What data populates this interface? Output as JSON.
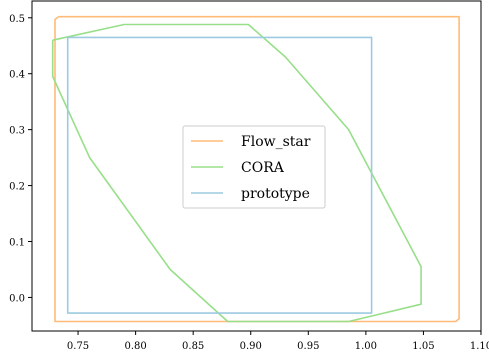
{
  "chart_data": {
    "type": "line",
    "xlim": [
      0.71,
      1.1
    ],
    "ylim": [
      -0.06,
      0.53
    ],
    "x_ticks": [
      0.75,
      0.8,
      0.85,
      0.9,
      0.95,
      1.0,
      1.05,
      1.1
    ],
    "y_ticks": [
      0.0,
      0.1,
      0.2,
      0.3,
      0.4,
      0.5
    ],
    "x_tick_labels": [
      "0.75",
      "0.80",
      "0.85",
      "0.90",
      "0.95",
      "1.00",
      "1.05",
      "1.10"
    ],
    "y_tick_labels": [
      "0.0",
      "0.1",
      "0.2",
      "0.3",
      "0.4",
      "0.5"
    ],
    "grid": false,
    "legend_position": "center",
    "series": [
      {
        "name": "Flow_star",
        "color": "#ffbb78",
        "points": [
          [
            0.733,
            0.502
          ],
          [
            1.081,
            0.502
          ],
          [
            1.081,
            -0.038
          ],
          [
            1.078,
            -0.043
          ],
          [
            0.73,
            -0.043
          ],
          [
            0.73,
            0.497
          ],
          [
            0.733,
            0.502
          ]
        ]
      },
      {
        "name": "CORA",
        "color": "#98df8a",
        "points": [
          [
            0.728,
            0.46
          ],
          [
            0.79,
            0.488
          ],
          [
            0.898,
            0.488
          ],
          [
            0.93,
            0.43
          ],
          [
            0.985,
            0.3
          ],
          [
            1.048,
            0.055
          ],
          [
            1.048,
            -0.012
          ],
          [
            0.985,
            -0.043
          ],
          [
            0.88,
            -0.043
          ],
          [
            0.83,
            0.05
          ],
          [
            0.76,
            0.25
          ],
          [
            0.728,
            0.395
          ],
          [
            0.728,
            0.46
          ]
        ]
      },
      {
        "name": "prototype",
        "color": "#9ecae1",
        "points": [
          [
            0.741,
            0.465
          ],
          [
            1.005,
            0.465
          ],
          [
            1.005,
            -0.028
          ],
          [
            0.741,
            -0.028
          ],
          [
            0.741,
            0.465
          ]
        ]
      }
    ]
  }
}
